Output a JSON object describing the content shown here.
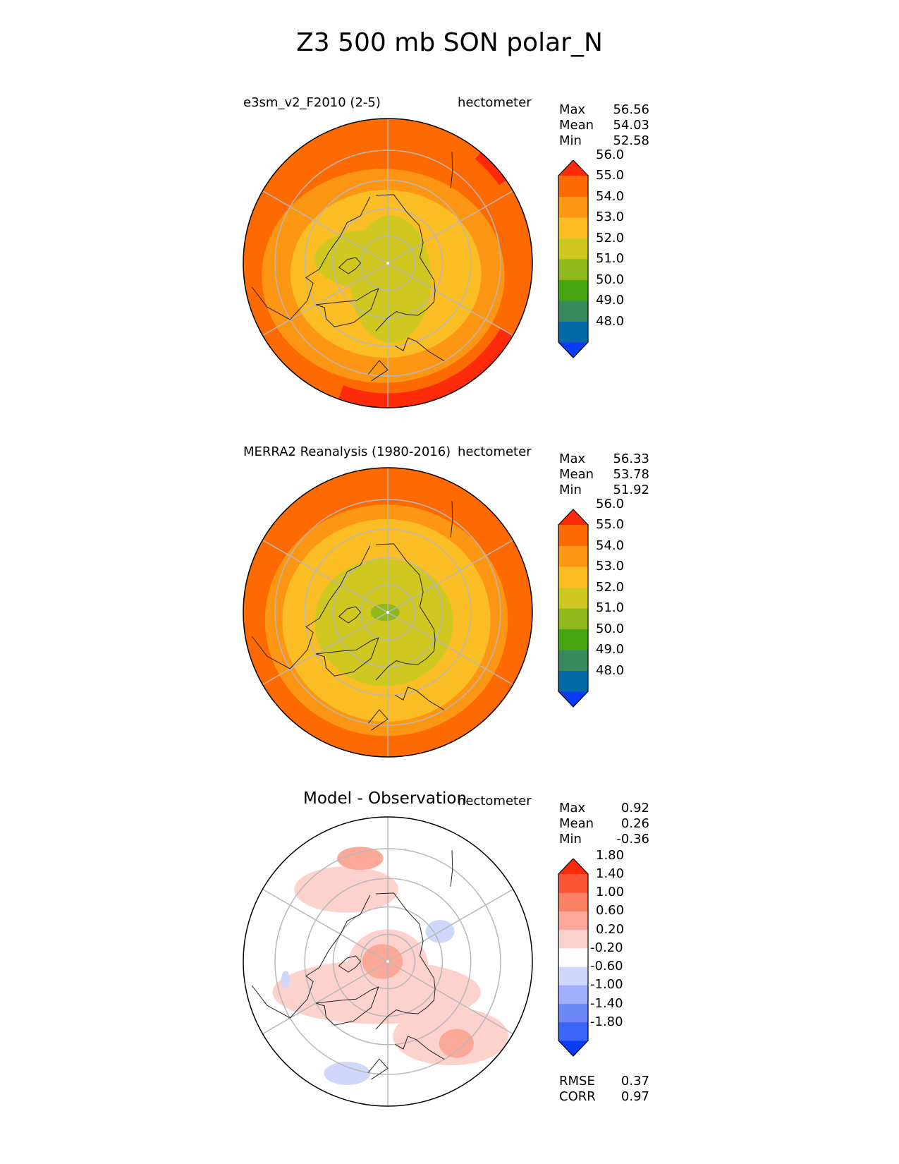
{
  "title": "Z3 500 mb SON polar_N",
  "panels": [
    {
      "id": "test",
      "title_left": "e3sm_v2_F2010 (2-5)",
      "title_center": "",
      "units": "hectometer",
      "stats": {
        "max_label": "Max",
        "max": "56.56",
        "mean_label": "Mean",
        "mean": "54.03",
        "min_label": "Min",
        "min": "52.58"
      },
      "colorbar": {
        "colors": [
          "#0a3cf5",
          "#0469a6",
          "#368a5c",
          "#48a512",
          "#8fb81b",
          "#cfc820",
          "#fbbd24",
          "#fd9612",
          "#fe6a02",
          "#fe2b0a"
        ],
        "labels": [
          "48.0",
          "49.0",
          "50.0",
          "51.0",
          "52.0",
          "53.0",
          "54.0",
          "55.0",
          "56.0"
        ]
      },
      "field": {
        "kind": "abs",
        "background": "#fe6a02",
        "regions": [
          {
            "color": "#fd9612",
            "shape": "ellipse",
            "lon": -20,
            "colat": 5,
            "rx": 42,
            "ry": 37
          },
          {
            "color": "#fbbd24",
            "shape": "ellipse",
            "lon": -10,
            "colat": 4,
            "rx": 33,
            "ry": 29
          },
          {
            "color": "#cfc820",
            "shape": "ellipse",
            "lon": 10,
            "colat": 6,
            "rx": 14,
            "ry": 22
          },
          {
            "color": "#cfc820",
            "shape": "ellipse",
            "lon": -100,
            "colat": 8,
            "rx": 18,
            "ry": 10
          },
          {
            "color": "#fe2b0a",
            "shape": "edge",
            "lon_from": -20,
            "lon_to": 60,
            "width": 5
          },
          {
            "color": "#fe2b0a",
            "shape": "edge",
            "lon_from": 125,
            "lon_to": 140,
            "width": 3
          }
        ]
      }
    },
    {
      "id": "ref",
      "title_left": "MERRA2 Reanalysis (1980-2016)",
      "title_center": "",
      "units": "hectometer",
      "stats": {
        "max_label": "Max",
        "max": "56.33",
        "mean_label": "Mean",
        "mean": "53.78",
        "min_label": "Min",
        "min": "51.92"
      },
      "colorbar": {
        "colors": [
          "#0a3cf5",
          "#0469a6",
          "#368a5c",
          "#48a512",
          "#8fb81b",
          "#cfc820",
          "#fbbd24",
          "#fd9612",
          "#fe6a02",
          "#fe2b0a"
        ],
        "labels": [
          "48.0",
          "49.0",
          "50.0",
          "51.0",
          "52.0",
          "53.0",
          "54.0",
          "55.0",
          "56.0"
        ]
      },
      "field": {
        "kind": "abs",
        "background": "#fe6a02",
        "regions": [
          {
            "color": "#fd9612",
            "shape": "ellipse",
            "lon": -10,
            "colat": 3,
            "rx": 42,
            "ry": 40
          },
          {
            "color": "#fbbd24",
            "shape": "ellipse",
            "lon": -10,
            "colat": 3,
            "rx": 36,
            "ry": 35
          },
          {
            "color": "#cfc820",
            "shape": "ellipse",
            "lon": -20,
            "colat": 4,
            "rx": 24,
            "ry": 22
          },
          {
            "color": "#8fb81b",
            "shape": "ellipse",
            "lon": -90,
            "colat": 1,
            "rx": 5,
            "ry": 3
          }
        ]
      }
    },
    {
      "id": "diff",
      "title_left": "",
      "title_center": "Model - Observation",
      "units": "hectometer",
      "stats": {
        "max_label": "Max",
        "max": "0.92",
        "mean_label": "Mean",
        "mean": "0.26",
        "min_label": "Min",
        "min": "-0.36"
      },
      "colorbar": {
        "colors": [
          "#0a3cf5",
          "#3c64f6",
          "#6c88f7",
          "#9faffa",
          "#cfd7fc",
          "#ffffff",
          "#fdd2cc",
          "#fca898",
          "#fb8066",
          "#fa5436",
          "#fa2b0a"
        ],
        "labels": [
          "-1.80",
          "-1.40",
          "-1.00",
          "-0.60",
          "-0.20",
          "0.20",
          "0.60",
          "1.00",
          "1.40",
          "1.80"
        ]
      },
      "field": {
        "kind": "diff",
        "background": "#ffffff",
        "regions": [
          {
            "color": "#fdd2cc",
            "shape": "ellipse",
            "lon": -20,
            "colat": 12,
            "rx": 36,
            "ry": 11
          },
          {
            "color": "#fdd2cc",
            "shape": "ellipse",
            "lon": 0,
            "colat": 2,
            "rx": 14,
            "ry": 13
          },
          {
            "color": "#fdd2cc",
            "shape": "ellipse",
            "lon": -150,
            "colat": 30,
            "rx": 18,
            "ry": 8
          },
          {
            "color": "#fdd2cc",
            "shape": "ellipse",
            "lon": 40,
            "colat": 35,
            "rx": 20,
            "ry": 10
          },
          {
            "color": "#fca898",
            "shape": "ellipse",
            "lon": -90,
            "colat": 2,
            "rx": 7,
            "ry": 6
          },
          {
            "color": "#fca898",
            "shape": "ellipse",
            "lon": -165,
            "colat": 38,
            "rx": 8,
            "ry": 4
          },
          {
            "color": "#fca898",
            "shape": "ellipse",
            "lon": 40,
            "colat": 38,
            "rx": 6,
            "ry": 5
          },
          {
            "color": "#cfd7fc",
            "shape": "ellipse",
            "lon": 120,
            "colat": 22,
            "rx": 5,
            "ry": 4
          },
          {
            "color": "#cfd7fc",
            "shape": "ellipse",
            "lon": -20,
            "colat": 42,
            "rx": 8,
            "ry": 4
          },
          {
            "color": "#cfd7fc",
            "shape": "ellipse",
            "lon": -80,
            "colat": 37,
            "rx": 1.5,
            "ry": 3
          }
        ]
      },
      "metrics": {
        "rmse_label": "RMSE",
        "rmse": "0.37",
        "corr_label": "CORR",
        "corr": "0.97"
      }
    }
  ]
}
